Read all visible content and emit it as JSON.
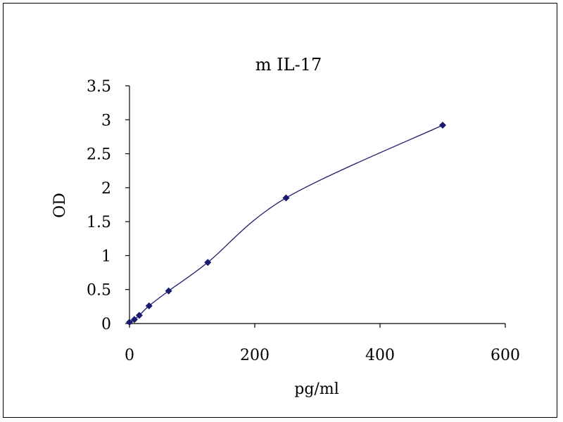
{
  "chart_data": {
    "type": "line",
    "title": "m IL-17",
    "xlabel": "pg/ml",
    "ylabel": "OD",
    "xlim": [
      0,
      600
    ],
    "ylim": [
      0,
      3.5
    ],
    "x_ticks": [
      "0",
      "200",
      "400",
      "600"
    ],
    "x_tick_values": [
      0,
      200,
      400,
      600
    ],
    "y_ticks": [
      "0",
      "0.5",
      "1",
      "1.5",
      "2",
      "2.5",
      "3",
      "3.5"
    ],
    "y_tick_values": [
      0,
      0.5,
      1,
      1.5,
      2,
      2.5,
      3,
      3.5
    ],
    "grid": false,
    "legend": "none",
    "series": [
      {
        "x": [
          0,
          7.8,
          15.6,
          31.2,
          62.5,
          125,
          250,
          500
        ],
        "y": [
          0.02,
          0.06,
          0.12,
          0.26,
          0.48,
          0.9,
          1.85,
          2.92
        ],
        "color": "#1a1a6e",
        "marker": "diamond",
        "line": "smooth"
      }
    ]
  }
}
